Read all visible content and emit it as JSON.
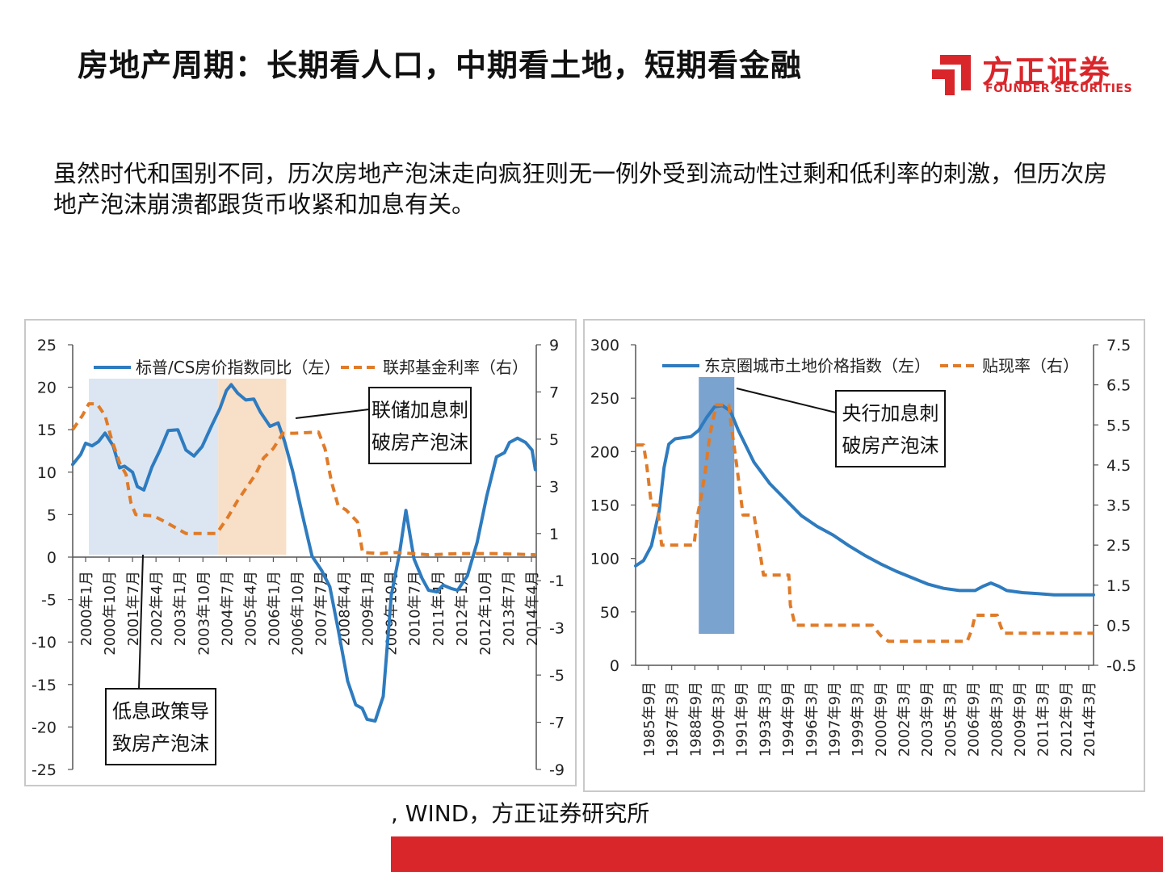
{
  "header": {
    "title": "房地产周期：长期看人口，中期看土地，短期看金融",
    "logo_cn": "方正证券",
    "logo_en": "FOUNDER SECURITIES",
    "logo_icon": "founder-logo-icon"
  },
  "lead_text": "虽然时代和国别不同，历次房地产泡沫走向疯狂则无一例外受到流动性过剩和低利率的刺激，但历次房地产泡沫崩溃都跟货币收紧和加息有关。",
  "source": ", WIND，方正证券研究所",
  "colors": {
    "blue": "#2e7bbf",
    "orange": "#e07b28",
    "brand_red": "#d9262b",
    "shade_blue": "#dbe6f2",
    "shade_orange": "#f7dfc8",
    "bar_blue": "#7aa3cf"
  },
  "chart_data": [
    {
      "type": "line",
      "legend": [
        "标普/CS房价指数同比（左）",
        "联邦基金利率（右）"
      ],
      "ylim_left": [
        -25,
        25
      ],
      "ylim_right": [
        -9,
        9
      ],
      "yticks_left": [
        "25",
        "20",
        "15",
        "10",
        "5",
        "0",
        "-5",
        "-10",
        "-15",
        "-20",
        "-25"
      ],
      "yticks_right": [
        "9",
        "7",
        "5",
        "3",
        "1",
        "-1",
        "-3",
        "-5",
        "-7",
        "-9"
      ],
      "xticks": [
        "2000年1月",
        "2000年10月",
        "2001年7月",
        "2002年4月",
        "2003年1月",
        "2003年10月",
        "2004年7月",
        "2005年4月",
        "2006年1月",
        "2006年10月",
        "2007年7月",
        "2008年4月",
        "2009年1月",
        "2009年10月",
        "2010年7月",
        "2011年4月",
        "2012年1月",
        "2012年10月",
        "2013年7月",
        "2014年4月"
      ],
      "x_range": [
        2000.0,
        2014.33
      ],
      "series": [
        {
          "name": "标普/CS房价指数同比（左）",
          "axis": "left",
          "style": "solid",
          "x": [
            2000.0,
            2000.25,
            2000.4,
            2000.6,
            2000.8,
            2001.0,
            2001.25,
            2001.45,
            2001.6,
            2001.85,
            2002.0,
            2002.2,
            2002.45,
            2002.7,
            2002.95,
            2003.25,
            2003.5,
            2003.75,
            2004.0,
            2004.3,
            2004.55,
            2004.75,
            2004.9,
            2005.1,
            2005.35,
            2005.6,
            2005.8,
            2006.1,
            2006.35,
            2006.55,
            2006.8,
            2007.1,
            2007.4,
            2007.7,
            2007.95,
            2008.2,
            2008.5,
            2008.75,
            2008.95,
            2009.1,
            2009.35,
            2009.6,
            2009.85,
            2010.1,
            2010.3,
            2010.55,
            2010.8,
            2011.0,
            2011.25,
            2011.45,
            2011.7,
            2011.9,
            2012.2,
            2012.5,
            2012.8,
            2013.1,
            2013.35,
            2013.5,
            2013.75,
            2014.0,
            2014.2,
            2014.3
          ],
          "y": [
            10.9,
            12.1,
            13.4,
            13.1,
            13.6,
            14.6,
            13.1,
            10.5,
            10.7,
            10.0,
            8.3,
            7.9,
            10.6,
            12.6,
            14.9,
            15.0,
            12.6,
            11.9,
            13.0,
            15.5,
            17.5,
            19.6,
            20.3,
            19.3,
            18.5,
            18.6,
            17.1,
            15.4,
            15.8,
            13.6,
            10.1,
            5.0,
            0.1,
            -1.6,
            -3.5,
            -8.4,
            -14.6,
            -17.4,
            -17.8,
            -19.1,
            -19.3,
            -16.4,
            -4.5,
            0.4,
            5.5,
            -0.2,
            -2.5,
            -3.9,
            -4.1,
            -3.3,
            -3.7,
            -3.9,
            -2.2,
            1.7,
            7.2,
            11.8,
            12.3,
            13.5,
            14.0,
            13.5,
            12.6,
            10.3
          ]
        },
        {
          "name": "联邦基金利率（右）",
          "axis": "right",
          "style": "dashed",
          "x": [
            2000.0,
            2000.3,
            2000.5,
            2000.75,
            2001.0,
            2001.2,
            2001.45,
            2001.65,
            2001.8,
            2001.95,
            2002.5,
            2002.85,
            2003.5,
            2004.45,
            2004.8,
            2005.1,
            2005.4,
            2005.65,
            2005.9,
            2006.2,
            2006.5,
            2006.85,
            2007.6,
            2007.8,
            2008.0,
            2008.2,
            2008.45,
            2008.8,
            2008.96,
            2009.5,
            2010.0,
            2011.0,
            2012.0,
            2013.0,
            2014.33
          ],
          "y": [
            5.4,
            6.0,
            6.5,
            6.5,
            6.0,
            5.0,
            4.0,
            3.5,
            2.3,
            1.8,
            1.75,
            1.5,
            1.0,
            1.0,
            1.7,
            2.4,
            3.0,
            3.5,
            4.2,
            4.6,
            5.25,
            5.25,
            5.3,
            4.6,
            3.2,
            2.2,
            2.0,
            1.5,
            0.2,
            0.15,
            0.2,
            0.1,
            0.15,
            0.15,
            0.1
          ]
        }
      ],
      "shaded_regions": [
        {
          "from": 2000.5,
          "to": 2004.5,
          "color": "#dbe6f2"
        },
        {
          "from": 2004.5,
          "to": 2006.6,
          "color": "#f7dfc8"
        }
      ],
      "annotations": [
        {
          "text": [
            "联储加息刺",
            "破房产泡沫"
          ]
        },
        {
          "text": [
            "低息政策导",
            "致房产泡沫"
          ]
        }
      ]
    },
    {
      "type": "line",
      "legend": [
        "东京圈城市土地价格指数（左）",
        "贴现率（右）"
      ],
      "ylim_left": [
        0,
        300
      ],
      "ylim_right": [
        -0.5,
        7.5
      ],
      "yticks_left": [
        "300",
        "250",
        "200",
        "150",
        "100",
        "50",
        "0"
      ],
      "yticks_right": [
        "7.5",
        "6.5",
        "5.5",
        "4.5",
        "3.5",
        "2.5",
        "1.5",
        "0.5",
        "-0.5"
      ],
      "xticks": [
        "1985年9月",
        "1987年3月",
        "1988年9月",
        "1990年3月",
        "1991年9月",
        "1993年3月",
        "1994年9月",
        "1996年3月",
        "1997年9月",
        "1999年3月",
        "2000年9月",
        "2002年3月",
        "2003年9月",
        "2005年3月",
        "2006年9月",
        "2008年3月",
        "2009年9月",
        "2011年3月",
        "2012年9月",
        "2014年3月"
      ],
      "x_range": [
        1985.5,
        2014.5
      ],
      "series": [
        {
          "name": "东京圈城市土地价格指数（左）",
          "axis": "left",
          "style": "solid",
          "x": [
            1985.5,
            1986.0,
            1986.5,
            1987.0,
            1987.3,
            1987.6,
            1988.0,
            1988.5,
            1989.0,
            1989.5,
            1990.0,
            1990.5,
            1991.0,
            1991.5,
            1992.0,
            1993.0,
            1994.0,
            1995.0,
            1996.0,
            1997.0,
            1998.0,
            1999.0,
            2000.0,
            2001.0,
            2002.0,
            2003.0,
            2004.0,
            2005.0,
            2006.0,
            2007.0,
            2007.5,
            2008.0,
            2008.5,
            2009.0,
            2010.0,
            2011.0,
            2012.0,
            2013.0,
            2014.5
          ],
          "y": [
            93,
            98,
            112,
            145,
            185,
            207,
            212,
            213,
            214,
            220,
            232,
            242,
            243,
            238,
            220,
            190,
            170,
            155,
            140,
            130,
            122,
            112,
            103,
            95,
            88,
            82,
            76,
            72,
            70,
            70,
            74,
            77,
            74,
            70,
            68,
            67,
            66,
            66,
            66
          ]
        },
        {
          "name": "贴现率（右）",
          "axis": "right",
          "style": "dashed",
          "x": [
            1985.5,
            1986.0,
            1986.2,
            1986.5,
            1986.9,
            1987.0,
            1987.15,
            1987.3,
            1989.2,
            1989.4,
            1989.6,
            1989.9,
            1990.2,
            1990.6,
            1991.4,
            1991.55,
            1991.9,
            1992.3,
            1993.0,
            1993.3,
            1993.6,
            1995.2,
            1995.3,
            1995.6,
            2000.5,
            2001.0,
            2001.5,
            2006.5,
            2006.8,
            2007.0,
            2007.2,
            2008.4,
            2008.6,
            2008.8,
            2009.0,
            2014.5
          ],
          "y": [
            5.0,
            5.0,
            4.5,
            3.5,
            3.5,
            3.0,
            2.5,
            2.5,
            2.5,
            3.2,
            3.6,
            4.3,
            5.25,
            6.0,
            6.0,
            5.5,
            4.5,
            3.25,
            3.25,
            2.5,
            1.75,
            1.75,
            1.0,
            0.5,
            0.5,
            0.25,
            0.1,
            0.1,
            0.4,
            0.75,
            0.75,
            0.75,
            0.5,
            0.3,
            0.3,
            0.3
          ]
        }
      ],
      "shaded_regions": [
        {
          "from": 1989.5,
          "to": 1991.75,
          "color": "#7aa3cf"
        }
      ],
      "annotations": [
        {
          "text": [
            "央行加息刺",
            "破房产泡沫"
          ]
        }
      ]
    }
  ]
}
